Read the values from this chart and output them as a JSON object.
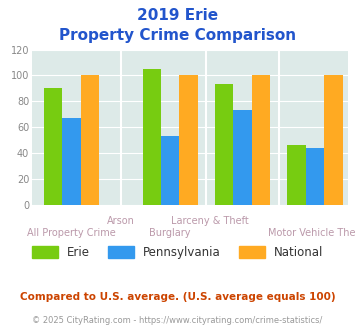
{
  "title_line1": "2019 Erie",
  "title_line2": "Property Crime Comparison",
  "erie_values": [
    90,
    105,
    93,
    46
  ],
  "pennsylvania_values": [
    67,
    53,
    73,
    44
  ],
  "national_values": [
    100,
    100,
    100,
    100
  ],
  "group_centers": [
    0.5,
    2.0,
    3.1,
    4.2
  ],
  "erie_color": "#77cc11",
  "pennsylvania_color": "#3399ee",
  "national_color": "#ffaa22",
  "bar_width": 0.28,
  "ylim": [
    0,
    120
  ],
  "yticks": [
    0,
    20,
    40,
    60,
    80,
    100,
    120
  ],
  "title_color": "#2255cc",
  "title_fontsize": 11,
  "label_color": "#bb99aa",
  "label_fontsize": 7.0,
  "background_color": "#ddeae8",
  "legend_labels": [
    "Erie",
    "Pennsylvania",
    "National"
  ],
  "upper_labels": [
    [
      "Arson",
      1.25
    ],
    [
      "Larceny & Theft",
      2.6
    ]
  ],
  "lower_labels": [
    [
      "All Property Crime",
      0.5
    ],
    [
      "Burglary",
      2.0
    ],
    [
      "Motor Vehicle Theft",
      4.2
    ]
  ],
  "footnote1": "Compared to U.S. average. (U.S. average equals 100)",
  "footnote2": "© 2025 CityRating.com - https://www.cityrating.com/crime-statistics/",
  "footnote1_color": "#cc4400",
  "footnote2_color": "#999999"
}
